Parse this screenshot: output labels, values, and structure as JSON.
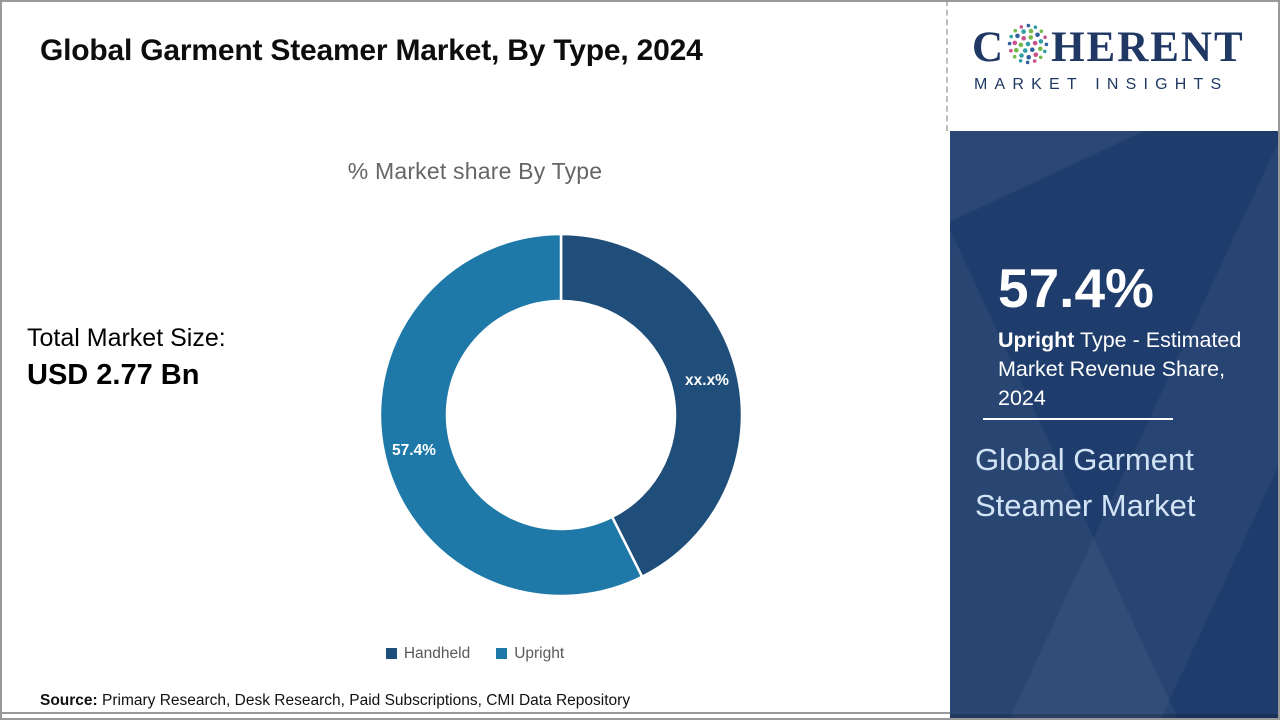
{
  "header": {
    "title": "Global Garment Steamer Market, By Type, 2024"
  },
  "logo": {
    "name_prefix": "C",
    "name_suffix": "HERENT",
    "subtitle": "MARKET INSIGHTS",
    "text_color": "#1f3864",
    "globe_colors": [
      "#2f9fa4",
      "#76b84b",
      "#c8528b",
      "#30619c"
    ]
  },
  "left_stats": {
    "label": "Total Market Size:",
    "value": "USD 2.77 Bn"
  },
  "chart_data": {
    "type": "pie",
    "donut": true,
    "title": "% Market share By Type",
    "categories": [
      "Handheld",
      "Upright"
    ],
    "values": [
      42.6,
      57.4
    ],
    "slice_labels": [
      "xx.x%",
      "57.4%"
    ],
    "colors": [
      "#1f4e7a",
      "#1f79a8"
    ],
    "inner_radius_ratio": 0.63,
    "start_angle_deg": 0,
    "direction": "clockwise",
    "legend_position": "bottom"
  },
  "sidebar": {
    "bg_color": "#1e3c6c",
    "stat_value": "57.4%",
    "stat_desc_bold": "Upright",
    "stat_desc_rest": " Type - Estimated Market Revenue Share, 2024",
    "market_name": "Global Garment Steamer Market"
  },
  "footer": {
    "source_label": "Source:",
    "source_text": " Primary Research, Desk Research, Paid Subscriptions, CMI Data Repository"
  }
}
